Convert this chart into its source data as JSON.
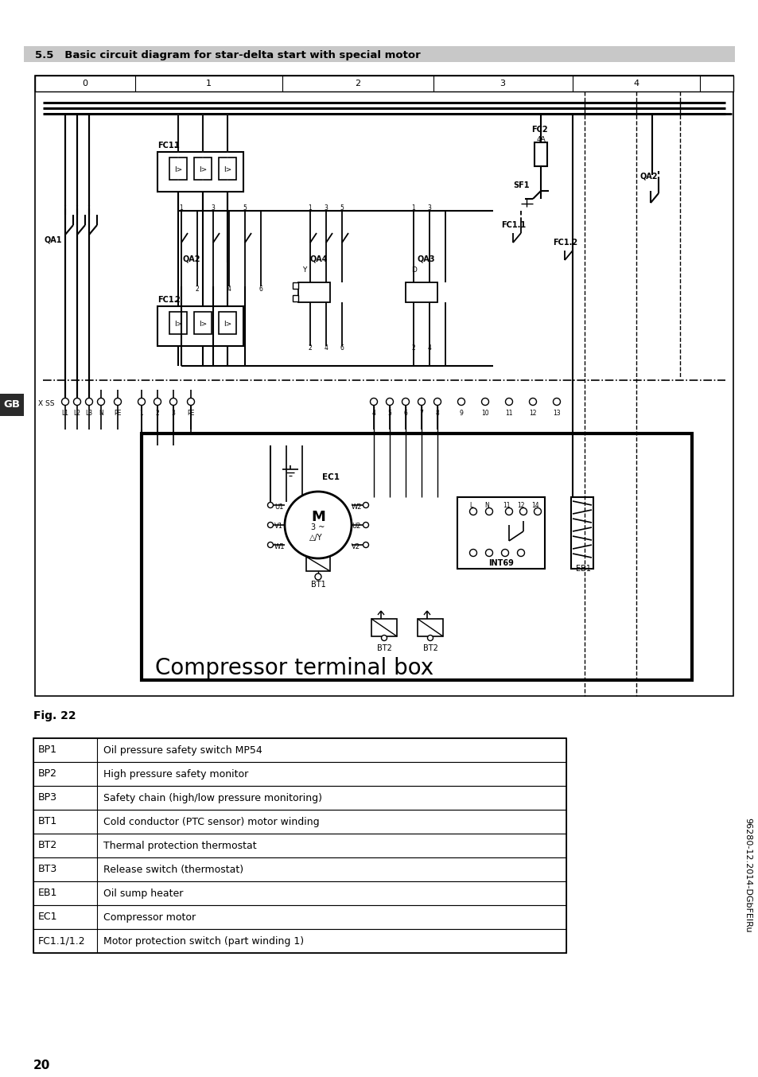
{
  "title_section": "5.5   Basic circuit diagram for star-delta start with special motor",
  "fig_label": "Fig. 22",
  "page_number": "20",
  "sidebar_text": "96280-12.2014-DGbFEIRu",
  "sidebar_label": "GB",
  "table_data": [
    [
      "BP1",
      "Oil pressure safety switch MP54"
    ],
    [
      "BP2",
      "High pressure safety monitor"
    ],
    [
      "BP3",
      "Safety chain (high/low pressure monitoring)"
    ],
    [
      "BT1",
      "Cold conductor (PTC sensor) motor winding"
    ],
    [
      "BT2",
      "Thermal protection thermostat"
    ],
    [
      "BT3",
      "Release switch (thermostat)"
    ],
    [
      "EB1",
      "Oil sump heater"
    ],
    [
      "EC1",
      "Compressor motor"
    ],
    [
      "FC1.1/1.2",
      "Motor protection switch (part winding 1)"
    ]
  ],
  "compressor_box_label": "Compressor terminal box",
  "bg_color": "#ffffff",
  "title_bg": "#c8c8c8",
  "grid_cols": [
    "0",
    "1",
    "2",
    "3",
    "4"
  ],
  "diagram_border": "#000000",
  "diagram_fill": "#ffffff"
}
